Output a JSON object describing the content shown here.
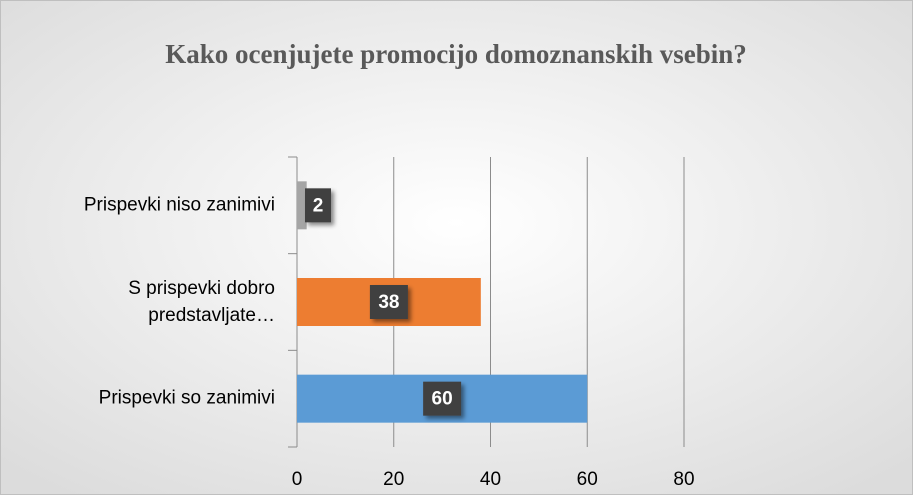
{
  "chart_data": {
    "type": "bar",
    "orientation": "horizontal",
    "title": "Kako ocenjujete promocijo domoznanskih vsebin?",
    "categories": [
      "Prispevki so zanimivi",
      "S prispevki dobro predstavljate…",
      "Prispevki niso zanimivi"
    ],
    "values": [
      60,
      38,
      2
    ],
    "colors": [
      "#5b9bd5",
      "#ed7d31",
      "#a5a5a5"
    ],
    "xlim": [
      0,
      80
    ],
    "xticks": [
      0,
      20,
      40,
      60,
      80
    ],
    "grid": true
  }
}
